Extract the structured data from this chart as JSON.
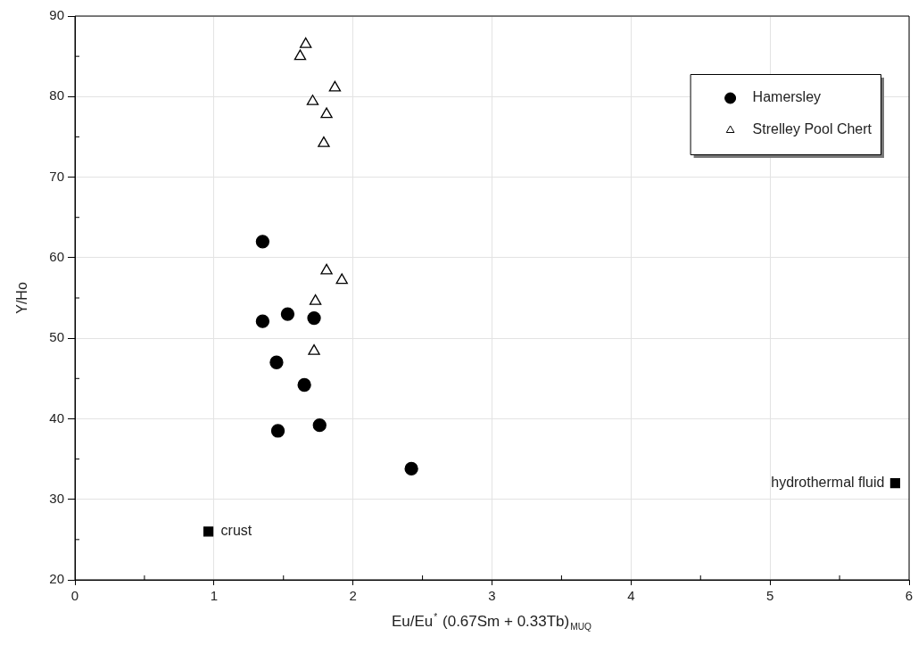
{
  "chart_data": {
    "type": "scatter",
    "xlabel": "Eu/Eu$^{*}$ (0.67Sm + 0.33Tb)$_{MUQ}$",
    "ylabel": "Y/Ho",
    "xlim": [
      0,
      6
    ],
    "xticks": [
      0,
      1,
      2,
      3,
      4,
      5,
      6
    ],
    "ylim": [
      20,
      90
    ],
    "yticks": [
      20,
      30,
      40,
      50,
      60,
      70,
      80,
      90
    ],
    "grid": true,
    "legend": "top right",
    "series": [
      {
        "name": "Hamersley",
        "color": "#000000",
        "marker": "circle",
        "x": [
          1.35,
          1.35,
          1.53,
          1.72,
          1.45,
          1.65,
          1.76,
          1.46,
          2.42
        ],
        "values": [
          62,
          52.1,
          53,
          52.5,
          47,
          44.2,
          39.2,
          38.5,
          33.8
        ]
      },
      {
        "name": "Strelley Pool Chert",
        "color": "#000000",
        "marker": "triangle",
        "x": [
          1.66,
          1.62,
          1.87,
          1.71,
          1.81,
          1.79,
          1.81,
          1.92,
          1.73,
          1.72
        ],
        "values": [
          86.5,
          85,
          81.1,
          79.4,
          77.8,
          74.2,
          58.4,
          57.2,
          54.6,
          48.4
        ]
      },
      {
        "name": "crust",
        "color": "#000000",
        "marker": "square",
        "x": [
          0.96
        ],
        "values": [
          26
        ]
      },
      {
        "name": "hydrothermal fluid",
        "color": "#000000",
        "marker": "square",
        "x": [
          5.9
        ],
        "values": [
          32
        ]
      }
    ]
  }
}
